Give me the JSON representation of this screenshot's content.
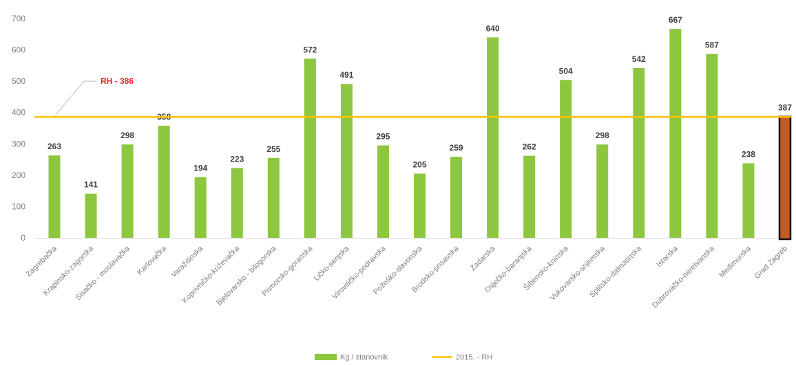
{
  "chart_data": {
    "type": "bar",
    "categories": [
      "Zagrebačka",
      "Krapinsko-zagorska",
      "Sisačko - moslavačka",
      "Karlovačka",
      "Varaždinska",
      "Koprivničko-križevačka",
      "Bjelovarsko - bilogorska",
      "Primorsko-goranska",
      "Ličko-senjska",
      "Virovitičko-podravska",
      "Požeško-slavonska",
      "Brodsko-posavska",
      "Zadarska",
      "Osječko-baranjska",
      "Šibensko-kninska",
      "Vukovarsko-srijemska",
      "Splitsko-dalmatinska",
      "Istarska",
      "Dubrovačko-neretvanska",
      "Međimurska",
      "Grad Zagreb"
    ],
    "series": [
      {
        "name": "Kg / stanovnik",
        "values": [
          263,
          141,
          298,
          358,
          194,
          223,
          255,
          572,
          491,
          295,
          205,
          259,
          640,
          262,
          504,
          298,
          542,
          667,
          587,
          238,
          387
        ],
        "color": "#8dc63f",
        "highlight_index": 20,
        "highlight_color": "#c55a22"
      }
    ],
    "reference_line": {
      "name": "2015. - RH",
      "value": 386,
      "label": "RH - 386",
      "color": "#ffc000",
      "label_color": "#e8242a"
    },
    "y_ticks": [
      0,
      100,
      200,
      300,
      400,
      500,
      600,
      700
    ],
    "ylim": [
      0,
      700
    ],
    "grid": false,
    "legend_position": "bottom",
    "title": "",
    "xlabel": "",
    "ylabel": ""
  }
}
